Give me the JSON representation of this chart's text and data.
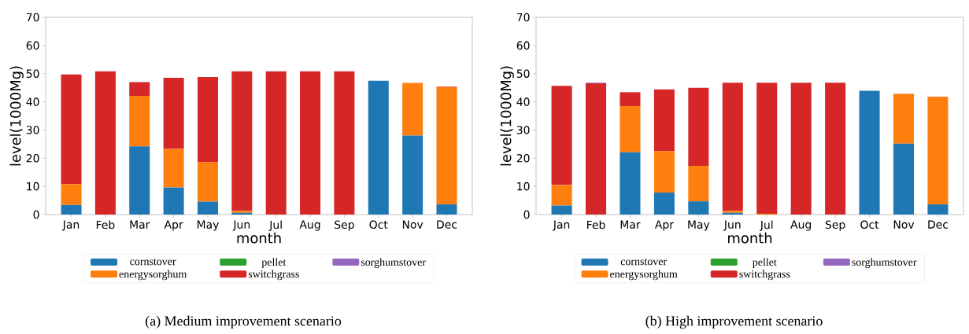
{
  "chart_data": [
    {
      "type": "bar",
      "stacked": true,
      "categories": [
        "Jan",
        "Feb",
        "Mar",
        "Apr",
        "May",
        "Jun",
        "Jul",
        "Aug",
        "Sep",
        "Oct",
        "Nov",
        "Dec"
      ],
      "xlabel": "month",
      "ylabel": "level(1000Mg)",
      "ylim": [
        0,
        70
      ],
      "yticks": [
        0,
        10,
        20,
        30,
        40,
        50,
        60,
        70
      ],
      "legend": "bottom",
      "annotations": [
        "(a) Medium improvement scenario"
      ],
      "series": [
        {
          "name": "cornstover",
          "color": "#1f77b4",
          "values": [
            3.4,
            0,
            24.2,
            9.6,
            4.6,
            0.6,
            0,
            0,
            0,
            47.5,
            28,
            3.6
          ]
        },
        {
          "name": "energysorghum",
          "color": "#ff7f0e",
          "values": [
            7.4,
            0,
            17.9,
            13.7,
            14,
            0.7,
            0,
            0,
            0,
            0,
            18.7,
            41.6
          ]
        },
        {
          "name": "pellet",
          "color": "#2ca02c",
          "values": [
            0,
            0,
            0,
            0,
            0,
            0,
            0,
            0,
            0,
            0,
            0,
            0
          ]
        },
        {
          "name": "switchgrass",
          "color": "#d62728",
          "values": [
            38.9,
            50.8,
            4.9,
            25.2,
            30.2,
            49.5,
            50.8,
            50.8,
            50.8,
            0,
            0,
            0.2
          ]
        },
        {
          "name": "sorghumstover",
          "color": "#9467bd",
          "values": [
            0,
            0,
            0,
            0,
            0,
            0,
            0,
            0,
            0,
            0,
            0,
            0
          ]
        }
      ]
    },
    {
      "type": "bar",
      "stacked": true,
      "categories": [
        "Jan",
        "Feb",
        "Mar",
        "Apr",
        "May",
        "Jun",
        "Jul",
        "Aug",
        "Sep",
        "Oct",
        "Nov",
        "Dec"
      ],
      "xlabel": "month",
      "ylabel": "level(1000Mg)",
      "ylim": [
        0,
        70
      ],
      "yticks": [
        0,
        10,
        20,
        30,
        40,
        50,
        60,
        70
      ],
      "legend": "bottom",
      "annotations": [
        "(b) High improvement scenario"
      ],
      "series": [
        {
          "name": "cornstover",
          "color": "#1f77b4",
          "values": [
            3.2,
            0,
            22.1,
            7.8,
            4.7,
            0.6,
            0,
            0,
            0,
            43.9,
            25.2,
            3.6
          ]
        },
        {
          "name": "energysorghum",
          "color": "#ff7f0e",
          "values": [
            7.3,
            0,
            16.4,
            14.7,
            12.6,
            0.7,
            0.3,
            0,
            0,
            0,
            17.7,
            38.2
          ]
        },
        {
          "name": "pellet",
          "color": "#2ca02c",
          "values": [
            0,
            0,
            0,
            0,
            0,
            0,
            0,
            0,
            0,
            0,
            0,
            0
          ]
        },
        {
          "name": "switchgrass",
          "color": "#d62728",
          "values": [
            35.2,
            46.6,
            4.9,
            21.9,
            27.7,
            45.5,
            46.5,
            46.8,
            46.8,
            0,
            0,
            null
          ]
        },
        {
          "name": "sorghumstover",
          "color": "#9467bd",
          "values": [
            0,
            0.2,
            0,
            0,
            0,
            0,
            0,
            0,
            0,
            0,
            0,
            0
          ]
        }
      ]
    }
  ]
}
